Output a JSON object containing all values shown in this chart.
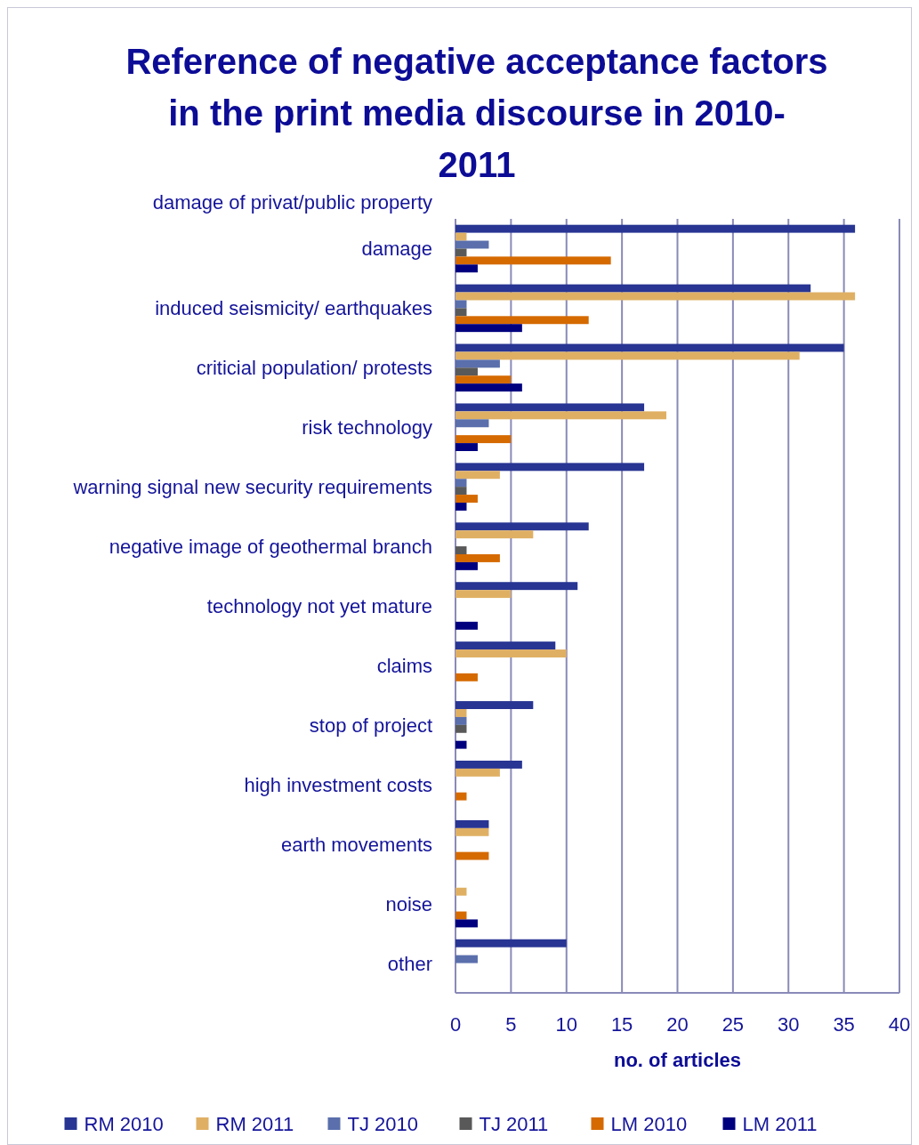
{
  "chart_data": {
    "type": "bar",
    "orientation": "horizontal",
    "title": "Reference of negative acceptance factors in the print media discourse in 2010-2011",
    "xlabel": "no. of articles",
    "categories": [
      "damage of privat/public property\ndamage",
      "induced seismicity/ earthquakes",
      "criticial population/ protests",
      "risk technology",
      "warning signal new security requirements",
      "negative image of geothermal branch",
      "technology not yet mature",
      "claims",
      "stop of project",
      "high investment costs",
      "earth movements",
      "noise",
      "other"
    ],
    "series": [
      {
        "name": "RM 2010",
        "color": "#283593",
        "values": [
          36,
          32,
          35,
          17,
          17,
          12,
          11,
          9,
          7,
          6,
          3,
          null,
          10
        ]
      },
      {
        "name": "RM 2011",
        "color": "#dfb064",
        "values": [
          1,
          36,
          31,
          19,
          4,
          7,
          5,
          10,
          1,
          4,
          3,
          1,
          null
        ]
      },
      {
        "name": "TJ 2010",
        "color": "#5a6fac",
        "values": [
          3,
          1,
          4,
          3,
          1,
          null,
          null,
          null,
          1,
          null,
          null,
          null,
          2
        ]
      },
      {
        "name": "TJ 2011",
        "color": "#595959",
        "values": [
          1,
          1,
          2,
          null,
          1,
          1,
          null,
          null,
          1,
          null,
          null,
          null,
          null
        ]
      },
      {
        "name": "LM 2010",
        "color": "#d56a00",
        "values": [
          14,
          12,
          5,
          5,
          2,
          4,
          null,
          2,
          null,
          1,
          3,
          1,
          null
        ]
      },
      {
        "name": "LM 2011",
        "color": "#00007f",
        "values": [
          2,
          6,
          6,
          2,
          1,
          2,
          2,
          null,
          1,
          null,
          null,
          2,
          null
        ]
      }
    ],
    "xlim": [
      0,
      40
    ],
    "xticks": [
      0,
      5,
      10,
      15,
      20,
      25,
      30,
      35,
      40
    ],
    "grid": "x",
    "legend": "bottom"
  }
}
